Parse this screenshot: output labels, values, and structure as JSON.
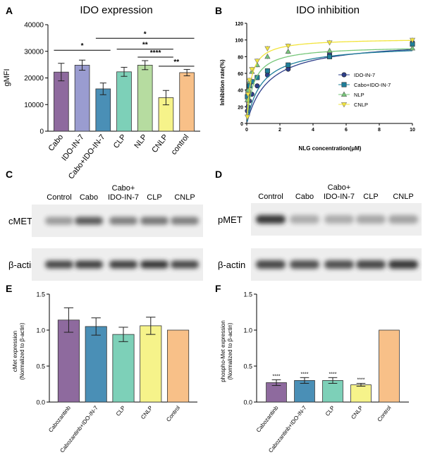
{
  "panel_labels": {
    "A": "A",
    "B": "B",
    "C": "C",
    "D": "D",
    "E": "E",
    "F": "F"
  },
  "colors": {
    "purple": "#8e6a9e",
    "lavender": "#9a9cd0",
    "blue": "#4a8fb6",
    "teal": "#7dd0b8",
    "green": "#b6dca0",
    "yellow": "#f6f38a",
    "orange": "#f8c088",
    "ido": "#2e3f8a",
    "cabo_ido": "#1f7f9a",
    "nlp": "#77c77a",
    "cnlp": "#f2e43c"
  },
  "chart_data": [
    {
      "id": "A",
      "type": "bar",
      "title": "IDO expression",
      "ylabel": "gMFI",
      "xlabel": "",
      "ylim": [
        0,
        40000
      ],
      "yticks": [
        0,
        10000,
        20000,
        30000,
        40000
      ],
      "categories": [
        "Cabo",
        "IDO-IN-7",
        "Cabo+IDO-IN-7",
        "CLP",
        "NLP",
        "CNLP",
        "control"
      ],
      "values": [
        22200,
        24800,
        15900,
        22300,
        24800,
        12600,
        22000
      ],
      "errors": [
        3300,
        1900,
        2200,
        1700,
        1700,
        2700,
        1200
      ],
      "colors": [
        "purple",
        "lavender",
        "blue",
        "teal",
        "green",
        "yellow",
        "orange"
      ],
      "significance": [
        {
          "from": 0,
          "to": 2,
          "label": "*",
          "y": 30400
        },
        {
          "from": 2,
          "to": 6,
          "label": "*",
          "y": 34900
        },
        {
          "from": 3,
          "to": 5,
          "label": "**",
          "y": 30800
        },
        {
          "from": 4,
          "to": 5,
          "label": "****",
          "y": 27800
        },
        {
          "from": 5,
          "to": 6,
          "label": "**",
          "y": 24400
        }
      ]
    },
    {
      "id": "B",
      "type": "line",
      "title": "IDO inhibition",
      "xlabel": "NLG concentration(μM)",
      "ylabel": "Inhibition rate(%)",
      "xlim": [
        0,
        10
      ],
      "ylim": [
        0,
        120
      ],
      "xticks": [
        0,
        2,
        4,
        6,
        8,
        10
      ],
      "yticks": [
        0,
        20,
        40,
        60,
        80,
        100,
        120
      ],
      "legend": "right",
      "x": [
        0.04,
        0.08,
        0.16,
        0.31,
        0.63,
        1.25,
        2.5,
        5,
        10
      ],
      "series": [
        {
          "name": "IDO-IN-7",
          "color": "ido",
          "marker": "circle",
          "values": [
            15,
            20,
            27,
            35,
            45,
            58,
            65,
            83,
            97
          ],
          "fit": {
            "top": 100,
            "ec50": 1.3,
            "hill": 1
          }
        },
        {
          "name": "Cabo+IDO-IN-7",
          "color": "cabo_ido",
          "marker": "square",
          "values": [
            32,
            38,
            45,
            50,
            55,
            63,
            70,
            80,
            95
          ],
          "fit": {
            "top": 95,
            "ec50": 0.9,
            "hill": 1
          }
        },
        {
          "name": "NLP",
          "color": "nlp",
          "marker": "triangle-up",
          "values": [
            28,
            40,
            50,
            62,
            70,
            80,
            86,
            87,
            90
          ],
          "fit": {
            "top": 93,
            "ec50": 0.4,
            "hill": 1
          }
        },
        {
          "name": "CNLP",
          "color": "cnlp",
          "marker": "triangle-down",
          "values": [
            8,
            35,
            52,
            65,
            75,
            90,
            93,
            97,
            100
          ],
          "fit": {
            "top": 102,
            "ec50": 0.25,
            "hill": 1
          }
        }
      ]
    },
    {
      "id": "E",
      "type": "bar",
      "title": "",
      "ylabel": "cMet expression\n(Normalized to  β-actin)",
      "ylim": [
        0,
        1.5
      ],
      "yticks": [
        0.0,
        0.5,
        1.0,
        1.5
      ],
      "categories": [
        "Cabozantinb",
        "Cabozantinb+IDO-IN-7",
        "CLP",
        "CNLP",
        "Control"
      ],
      "values": [
        1.14,
        1.05,
        0.94,
        1.06,
        1.0
      ],
      "errors": [
        0.17,
        0.12,
        0.1,
        0.12,
        0
      ],
      "colors": [
        "purple",
        "blue",
        "teal",
        "yellow",
        "orange"
      ],
      "annotations": [
        "",
        "",
        "",
        "",
        ""
      ]
    },
    {
      "id": "F",
      "type": "bar",
      "title": "",
      "ylabel": "phospho-Met expression\n(Normalized to  β-actin)",
      "ylim": [
        0,
        1.5
      ],
      "yticks": [
        0.0,
        0.5,
        1.0,
        1.5
      ],
      "categories": [
        "Cabozantinb",
        "Cabozantinb+IDO-IN-7",
        "CLP",
        "CNLP",
        "Control"
      ],
      "values": [
        0.27,
        0.3,
        0.3,
        0.24,
        1.0
      ],
      "errors": [
        0.04,
        0.04,
        0.04,
        0.02,
        0
      ],
      "colors": [
        "purple",
        "blue",
        "teal",
        "yellow",
        "orange"
      ],
      "annotations": [
        "****",
        "****",
        "****",
        "****",
        ""
      ]
    }
  ],
  "blots": {
    "C": {
      "headers": [
        "Control",
        "Cabo",
        "Cabo+\nIDO-IN-7",
        "CLP",
        "CNLP"
      ],
      "rows": [
        {
          "label": "cMET",
          "intensity": [
            0.45,
            0.8,
            0.6,
            0.65,
            0.6
          ]
        },
        {
          "label": "β-actin",
          "intensity": [
            0.9,
            0.95,
            0.95,
            1.0,
            0.9
          ]
        }
      ]
    },
    "D": {
      "headers": [
        "Control",
        "Cabo",
        "Cabo+\nIDO-IN-7",
        "CLP",
        "CNLP"
      ],
      "rows": [
        {
          "label": "pMET",
          "intensity": [
            1.0,
            0.35,
            0.35,
            0.38,
            0.4
          ]
        },
        {
          "label": "β-actin",
          "intensity": [
            0.9,
            0.85,
            0.85,
            0.9,
            1.0
          ]
        }
      ]
    }
  }
}
